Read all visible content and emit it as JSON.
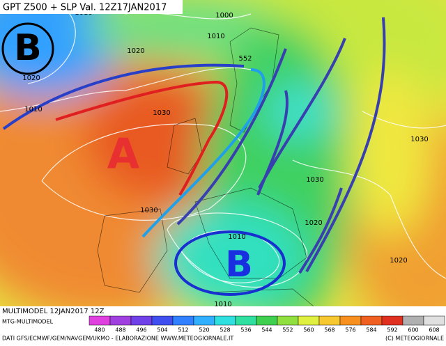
{
  "header": {
    "title": "GPT Z500 + SLP Val. 12Z17JAN2017"
  },
  "map": {
    "pressure_centers": [
      "B",
      "A",
      "B"
    ],
    "contour_labels": [
      "1010",
      "1000",
      "1010",
      "1020",
      "1020",
      "552",
      "1010",
      "1030",
      "1030",
      "1030",
      "1030",
      "1020",
      "1010",
      "1020",
      "1010"
    ]
  },
  "footer": {
    "run": "MULTIMODEL 12JAN2017 12Z",
    "model": "MTG-MULTIMODEL",
    "sources": "DATI GFS/ECMWF/GEM/NAVGEM/UKMO - ELABORAZIONE WWW.METEOGIORNALE.IT",
    "copyright": "(C) METEOGIORNALE"
  },
  "legend": {
    "ticks": [
      480,
      488,
      496,
      504,
      512,
      520,
      528,
      536,
      544,
      552,
      560,
      568,
      576,
      584,
      592,
      600,
      608
    ],
    "colors": [
      "#e040e0",
      "#a040e0",
      "#7040e8",
      "#4050f0",
      "#3080ff",
      "#30b0ff",
      "#30e0e0",
      "#30e0a0",
      "#40d050",
      "#90e040",
      "#e0f040",
      "#f8c830",
      "#f89020",
      "#f06020",
      "#e03020",
      "#b0b0b0",
      "#e0e0e0"
    ]
  }
}
